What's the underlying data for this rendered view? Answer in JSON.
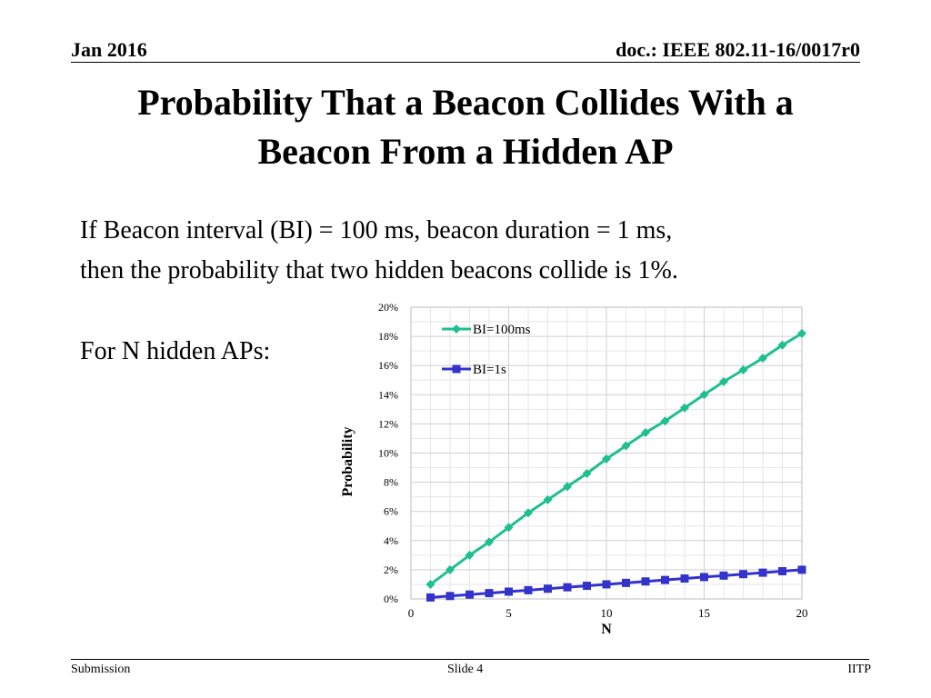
{
  "header": {
    "date": "Jan 2016",
    "doc": "doc.: IEEE 802.11-16/0017r0"
  },
  "title": {
    "line1": "Probability That a Beacon Collides With a",
    "line2": "Beacon From a Hidden AP"
  },
  "body": {
    "line1": "If Beacon interval (BI) = 100 ms, beacon duration = 1 ms,",
    "line2": "then the probability that two hidden beacons collide is 1%.",
    "for_n": "For N hidden APs:"
  },
  "chart_data": {
    "type": "line",
    "xlabel": "N",
    "ylabel": "Probability",
    "xlim": [
      0,
      20
    ],
    "ylim": [
      0,
      0.2
    ],
    "xticks": [
      "0",
      "5",
      "10",
      "15",
      "20"
    ],
    "yticks": [
      "0%",
      "2%",
      "4%",
      "6%",
      "8%",
      "10%",
      "12%",
      "14%",
      "16%",
      "18%",
      "20%"
    ],
    "grid": true,
    "legend_position": "top-left",
    "x": [
      1,
      2,
      3,
      4,
      5,
      6,
      7,
      8,
      9,
      10,
      11,
      12,
      13,
      14,
      15,
      16,
      17,
      18,
      19,
      20
    ],
    "series": [
      {
        "name": "BI=100ms",
        "color": "#1fbf8f",
        "marker": "diamond",
        "values": [
          0.01,
          0.02,
          0.03,
          0.039,
          0.049,
          0.059,
          0.068,
          0.077,
          0.086,
          0.096,
          0.105,
          0.114,
          0.122,
          0.131,
          0.14,
          0.149,
          0.157,
          0.165,
          0.174,
          0.182
        ]
      },
      {
        "name": "BI=1s",
        "color": "#3333cc",
        "marker": "square",
        "values": [
          0.001,
          0.002,
          0.003,
          0.004,
          0.005,
          0.006,
          0.007,
          0.008,
          0.009,
          0.01,
          0.011,
          0.012,
          0.013,
          0.014,
          0.015,
          0.016,
          0.017,
          0.018,
          0.019,
          0.02
        ]
      }
    ]
  },
  "footer": {
    "left": "Submission",
    "center": "Slide 4",
    "right": "IITP"
  }
}
